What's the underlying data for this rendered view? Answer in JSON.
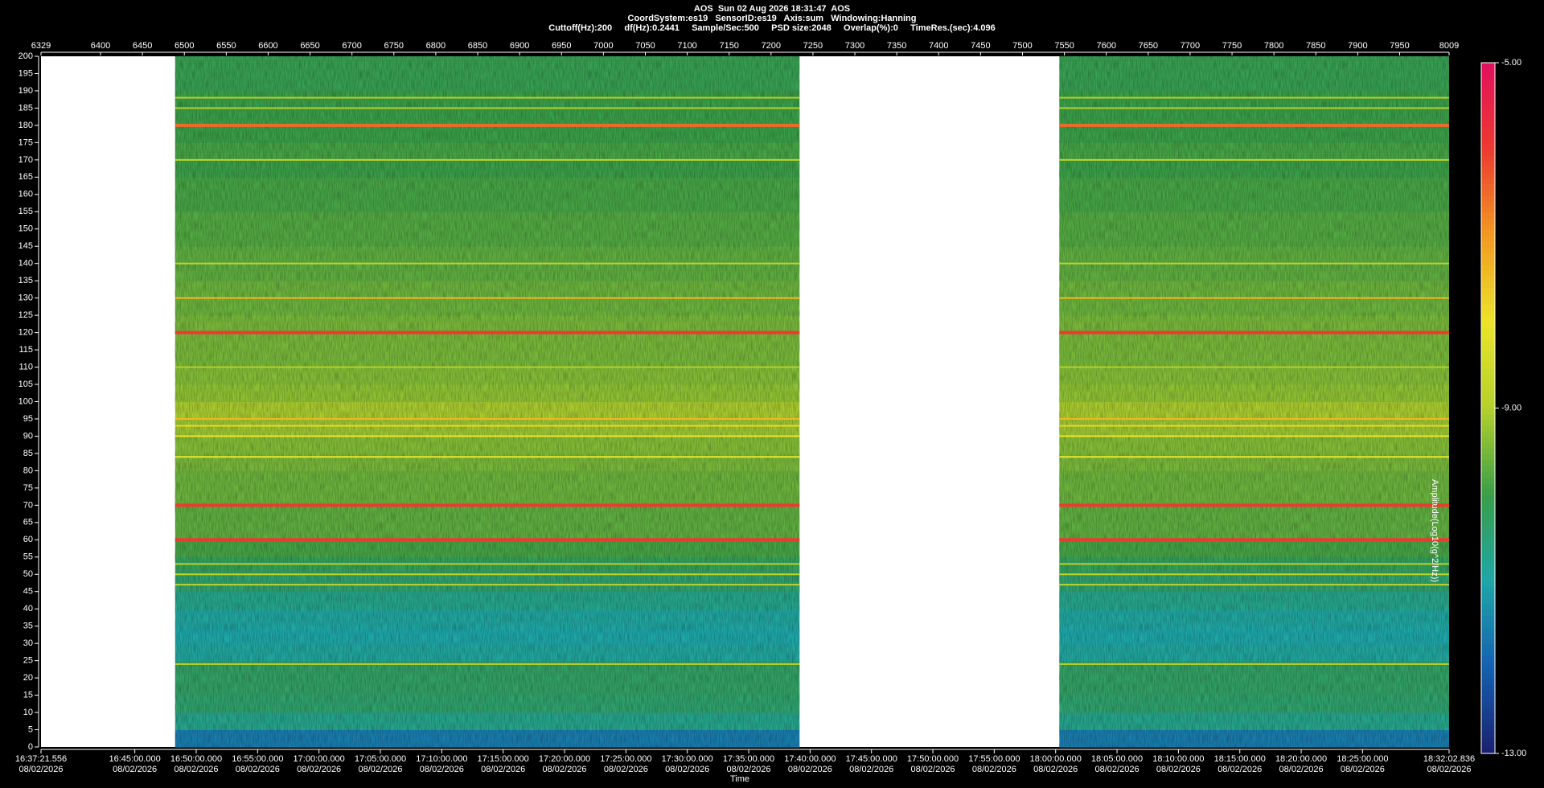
{
  "chart_data": {
    "type": "spectrogram",
    "title": [
      "AOS  Sun 02 Aug 2026 18:31:47  AOS",
      "CoordSystem:es19   SensorID:es19   Axis:sum   Windowing:Hanning",
      "Cuttoff(Hz):200     df(Hz):0.2441     Sample/Sec:500     PSD size:2048     Overlap(%):0     TimeRes.(sec):4.096"
    ],
    "x2_label": "Time",
    "colorbar_label": "Amplitude(Log10(g^2/Hz))",
    "xlim": [
      6329,
      8009
    ],
    "xticks": [
      6329,
      6400,
      6450,
      6500,
      6550,
      6600,
      6650,
      6700,
      6750,
      6800,
      6850,
      6900,
      6950,
      7000,
      7050,
      7100,
      7150,
      7200,
      7250,
      7300,
      7350,
      7400,
      7450,
      7500,
      7550,
      7600,
      7650,
      7700,
      7750,
      7800,
      7850,
      7900,
      7950,
      8009
    ],
    "x2lim": [
      59841.556,
      66722.836
    ],
    "x2ticks": [
      {
        "value": 59841.556,
        "label": "16:37:21.556\n08/02/2026"
      },
      {
        "value": 60300,
        "label": "16:45:00.000\n08/02/2026"
      },
      {
        "value": 60600,
        "label": "16:50:00.000\n08/02/2026"
      },
      {
        "value": 60900,
        "label": "16:55:00.000\n08/02/2026"
      },
      {
        "value": 61200,
        "label": "17:00:00.000\n08/02/2026"
      },
      {
        "value": 61500,
        "label": "17:05:00.000\n08/02/2026"
      },
      {
        "value": 61800,
        "label": "17:10:00.000\n08/02/2026"
      },
      {
        "value": 62100,
        "label": "17:15:00.000\n08/02/2026"
      },
      {
        "value": 62400,
        "label": "17:20:00.000\n08/02/2026"
      },
      {
        "value": 62700,
        "label": "17:25:00.000\n08/02/2026"
      },
      {
        "value": 63000,
        "label": "17:30:00.000\n08/02/2026"
      },
      {
        "value": 63300,
        "label": "17:35:00.000\n08/02/2026"
      },
      {
        "value": 63600,
        "label": "17:40:00.000\n08/02/2026"
      },
      {
        "value": 63900,
        "label": "17:45:00.000\n08/02/2026"
      },
      {
        "value": 64200,
        "label": "17:50:00.000\n08/02/2026"
      },
      {
        "value": 64500,
        "label": "17:55:00.000\n08/02/2026"
      },
      {
        "value": 64800,
        "label": "18:00:00.000\n08/02/2026"
      },
      {
        "value": 65100,
        "label": "18:05:00.000\n08/02/2026"
      },
      {
        "value": 65400,
        "label": "18:10:00.000\n08/02/2026"
      },
      {
        "value": 65700,
        "label": "18:15:00.000\n08/02/2026"
      },
      {
        "value": 66000,
        "label": "18:20:00.000\n08/02/2026"
      },
      {
        "value": 66300,
        "label": "18:25:00.000\n08/02/2026"
      },
      {
        "value": 66722.836,
        "label": "18:32:02.836\n08/02/2026"
      }
    ],
    "ylim": [
      0,
      200
    ],
    "yticks": [
      0,
      5,
      10,
      15,
      20,
      25,
      30,
      35,
      40,
      45,
      50,
      55,
      60,
      65,
      70,
      75,
      80,
      85,
      90,
      95,
      100,
      105,
      110,
      115,
      120,
      125,
      130,
      135,
      140,
      145,
      150,
      155,
      160,
      165,
      170,
      175,
      180,
      185,
      190,
      195,
      200
    ],
    "clim": [
      -13,
      -5
    ],
    "cticks": [
      {
        "value": -5,
        "label": "-5.00"
      },
      {
        "value": -9,
        "label": "-9.00"
      },
      {
        "value": -13,
        "label": "-13.00"
      }
    ],
    "colors": [
      "#1a1f70",
      "#1560b0",
      "#1ea6a8",
      "#3a9e48",
      "#b4d02c",
      "#ece42a",
      "#f29a22",
      "#ec3a30",
      "#e2105c"
    ],
    "segments": [
      [
        6489,
        7234
      ],
      [
        7544,
        8009
      ]
    ],
    "band_amplitude": [
      -11.6,
      -10.7,
      -10.4,
      -10.3,
      -10.3,
      -10.9,
      -11.0,
      -10.9,
      -10.7,
      -10.4,
      -10.2,
      -9.9,
      -9.7,
      -9.7,
      -9.6,
      -9.6,
      -9.5,
      -9.4,
      -9.2,
      -9.1,
      -9.3,
      -9.4,
      -9.5,
      -9.5,
      -9.5,
      -9.6,
      -9.6,
      -9.7,
      -9.7,
      -9.8,
      -9.8,
      -9.9,
      -9.9,
      -10.0,
      -9.9,
      -10.0,
      -10.0,
      -10.0,
      -10.1,
      -10.1
    ],
    "lines": [
      {
        "frequency": 24,
        "amplitude": -8.9
      },
      {
        "frequency": 47,
        "amplitude": -8.8
      },
      {
        "frequency": 50,
        "amplitude": -8.8
      },
      {
        "frequency": 53,
        "amplitude": -8.9
      },
      {
        "frequency": 60,
        "amplitude": -6.0
      },
      {
        "frequency": 70,
        "amplitude": -6.0
      },
      {
        "frequency": 84,
        "amplitude": -8.0
      },
      {
        "frequency": 90,
        "amplitude": -8.0
      },
      {
        "frequency": 93,
        "amplitude": -7.8
      },
      {
        "frequency": 95,
        "amplitude": -7.4
      },
      {
        "frequency": 110,
        "amplitude": -9.0
      },
      {
        "frequency": 120,
        "amplitude": -6.0
      },
      {
        "frequency": 130,
        "amplitude": -7.4
      },
      {
        "frequency": 140,
        "amplitude": -8.8
      },
      {
        "frequency": 170,
        "amplitude": -8.8
      },
      {
        "frequency": 180,
        "amplitude": -6.5
      },
      {
        "frequency": 185,
        "amplitude": -9.0
      },
      {
        "frequency": 188,
        "amplitude": -9.0
      }
    ]
  }
}
